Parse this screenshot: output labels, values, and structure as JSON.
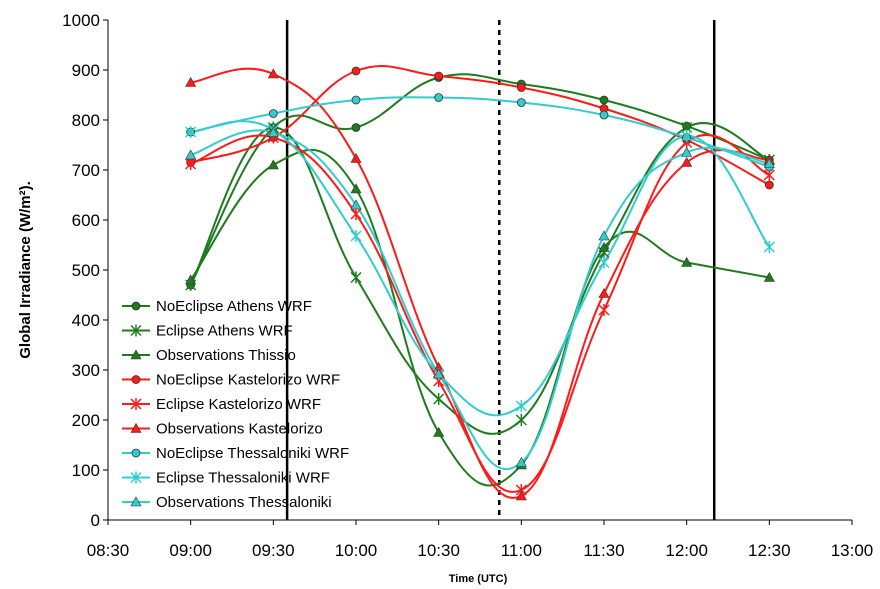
{
  "chart_data": {
    "type": "line",
    "title": "",
    "xlabel": "Time (UTC)",
    "ylabel": "Global Irradiance (W/m²).",
    "ylim": [
      0,
      1000
    ],
    "yticks": [
      "0",
      "100",
      "200",
      "300",
      "400",
      "500",
      "600",
      "700",
      "800",
      "900",
      "1000"
    ],
    "xticks": [
      "08:30",
      "09:00",
      "09:30",
      "10:00",
      "10:30",
      "11:00",
      "11:30",
      "12:00",
      "12:30",
      "13:00"
    ],
    "x": [
      "09:00",
      "09:30",
      "10:00",
      "10:30",
      "11:00",
      "11:30",
      "12:00",
      "12:30"
    ],
    "grid": false,
    "legend_position": "left",
    "vertical_lines": [
      {
        "time": "09:35",
        "style": "solid"
      },
      {
        "time": "10:52",
        "style": "dashed"
      },
      {
        "time": "12:10",
        "style": "solid"
      }
    ],
    "series": [
      {
        "name": "NoEclipse Athens WRF",
        "color": "#1e7b1e",
        "marker": "circle",
        "values": [
          470,
          785,
          785,
          885,
          872,
          840,
          788,
          720
        ]
      },
      {
        "name": "Eclipse Athens WRF",
        "color": "#1e7b1e",
        "marker": "star",
        "values": [
          470,
          785,
          485,
          242,
          200,
          535,
          785,
          720
        ]
      },
      {
        "name": "Observations Thissio",
        "color": "#1e7b1e",
        "marker": "triangle",
        "values": [
          480,
          710,
          662,
          175,
          110,
          545,
          515,
          485
        ]
      },
      {
        "name": "NoEclipse Kastelorizo WRF",
        "color": "#ff1a1a",
        "marker": "circle",
        "values": [
          715,
          765,
          898,
          888,
          865,
          823,
          760,
          670
        ]
      },
      {
        "name": "Eclipse Kastelorizo WRF",
        "color": "#ff1a1a",
        "marker": "star",
        "values": [
          712,
          765,
          612,
          278,
          60,
          420,
          755,
          690
        ]
      },
      {
        "name": "Observations Kastelorizo",
        "color": "#ff1a1a",
        "marker": "triangle",
        "values": [
          875,
          892,
          723,
          305,
          48,
          453,
          715,
          720
        ]
      },
      {
        "name": "NoEclipse Thessaloniki WRF",
        "color": "#33cccc",
        "marker": "circle",
        "values": [
          776,
          813,
          840,
          845,
          835,
          810,
          765,
          706
        ]
      },
      {
        "name": "Eclipse Thessaloniki WRF",
        "color": "#33cccc",
        "marker": "star",
        "values": [
          776,
          780,
          568,
          292,
          228,
          515,
          768,
          546
        ]
      },
      {
        "name": "Observations Thessaloniki",
        "color": "#33cccc",
        "marker": "triangle",
        "values": [
          730,
          775,
          630,
          292,
          115,
          568,
          735,
          713
        ]
      }
    ]
  }
}
